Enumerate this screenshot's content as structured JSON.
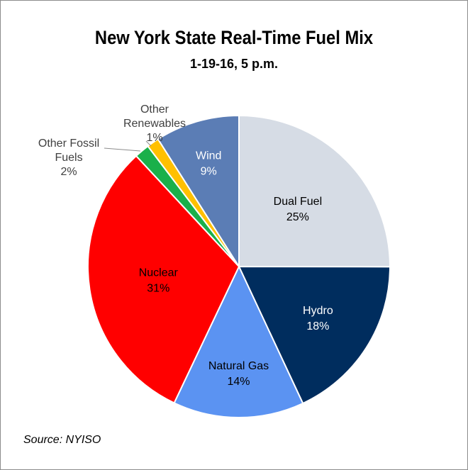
{
  "chart_data": {
    "type": "pie",
    "title": "New York State Real-Time Fuel Mix",
    "subtitle": "1-19-16, 5 p.m.",
    "source": "Source: NYISO",
    "slices": [
      {
        "label": "Dual Fuel",
        "value": 25,
        "value_label": "25%",
        "color": "#d6dce5",
        "text_color": "#000000"
      },
      {
        "label": "Hydro",
        "value": 18,
        "value_label": "18%",
        "color": "#002d5e",
        "text_color": "#ffffff"
      },
      {
        "label": "Natural Gas",
        "value": 14,
        "value_label": "14%",
        "color": "#5b93f2",
        "text_color": "#000000"
      },
      {
        "label": "Nuclear",
        "value": 31,
        "value_label": "31%",
        "color": "#ff0000",
        "text_color": "#000000"
      },
      {
        "label": "Other Fossil Fuels",
        "value": 1.6,
        "value_label": "2%",
        "color": "#1ab04a",
        "text_color": "#404040"
      },
      {
        "label": "Other Renewables",
        "value": 1.3,
        "value_label": "1%",
        "color": "#ffc000",
        "text_color": "#404040"
      },
      {
        "label": "Wind",
        "value": 9,
        "value_label": "9%",
        "color": "#5b7db5",
        "text_color": "#ffffff"
      }
    ]
  }
}
